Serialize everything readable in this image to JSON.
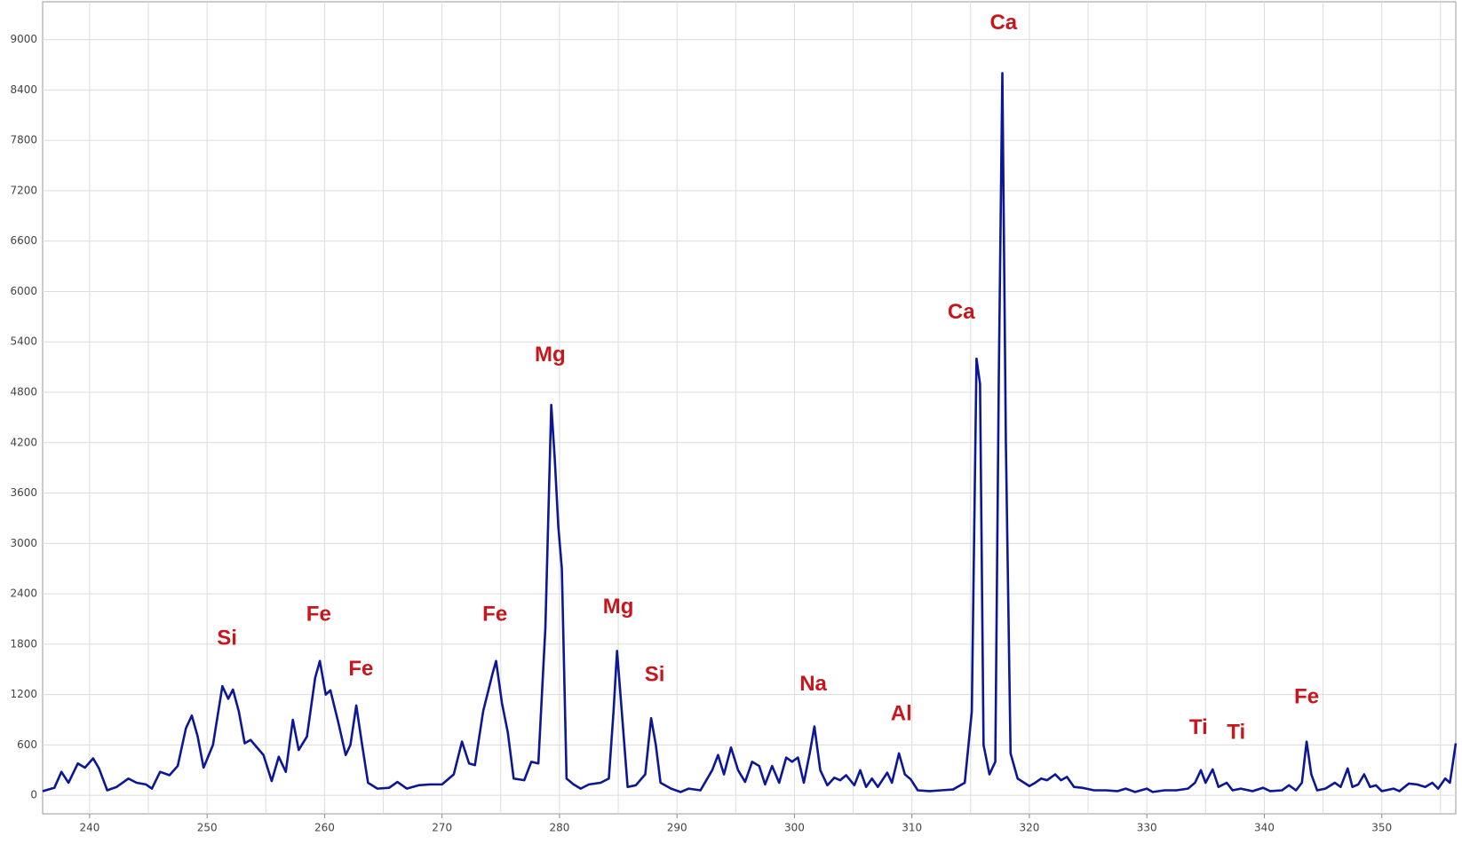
{
  "chart_data": {
    "type": "line",
    "x": [
      236.0,
      237,
      237.6,
      238.2,
      239,
      239.6,
      240.3,
      240.8,
      241.5,
      242.3,
      243.3,
      244,
      244.8,
      245.3,
      246,
      246.8,
      247.5,
      248.2,
      248.7,
      249.2,
      249.7,
      250.5,
      251.3,
      251.8,
      252.2,
      252.7,
      253.2,
      253.7,
      254.8,
      255.5,
      256.1,
      256.7,
      257.3,
      257.8,
      258.5,
      259.2,
      259.6,
      260.1,
      260.5,
      261.2,
      261.8,
      262.2,
      262.7,
      263.2,
      263.7,
      264.5,
      265.5,
      266.2,
      267,
      268,
      269,
      270,
      271,
      271.7,
      272.3,
      272.8,
      273.5,
      274.3,
      274.6,
      275.1,
      275.6,
      276.1,
      277,
      277.6,
      278.2,
      278.8,
      279.3,
      279.6,
      279.9,
      280.2,
      280.6,
      281.2,
      281.8,
      282.5,
      283.5,
      284.2,
      284.6,
      284.9,
      285.3,
      285.8,
      286.5,
      287.3,
      287.8,
      288.2,
      288.6,
      289.5,
      290.3,
      291,
      292,
      293,
      293.5,
      294,
      294.6,
      295.2,
      295.8,
      296.4,
      297,
      297.5,
      298.1,
      298.7,
      299.3,
      299.8,
      300.3,
      300.8,
      301.3,
      301.7,
      302.2,
      302.8,
      303.4,
      303.9,
      304.4,
      305.1,
      305.6,
      306.1,
      306.6,
      307.1,
      307.9,
      308.3,
      308.9,
      309.4,
      309.9,
      310.5,
      311.5,
      312.5,
      313.5,
      314.5,
      315.1,
      315.5,
      315.8,
      316.1,
      316.6,
      317.1,
      317.4,
      317.7,
      318,
      318.4,
      319,
      320,
      320.5,
      321,
      321.5,
      322.2,
      322.7,
      323.2,
      323.8,
      324.5,
      325.5,
      326.5,
      327.5,
      328.2,
      329,
      330,
      330.5,
      331.5,
      332.5,
      333.5,
      334.1,
      334.6,
      335,
      335.6,
      336.1,
      336.8,
      337.3,
      338,
      339,
      339.9,
      340.5,
      341.5,
      342.1,
      342.7,
      343.2,
      343.6,
      344,
      344.5,
      345.2,
      346,
      346.5,
      347.1,
      347.5,
      348,
      348.5,
      349,
      349.5,
      350,
      351,
      351.5,
      352.3,
      353,
      353.7,
      354.3,
      354.8,
      355.4,
      355.8,
      356.3
    ],
    "series": [
      {
        "color": "#0b1796",
        "values": [
          50,
          90,
          280,
          150,
          380,
          330,
          440,
          320,
          60,
          100,
          200,
          150,
          130,
          80,
          280,
          240,
          350,
          800,
          950,
          700,
          330,
          600,
          1300,
          1150,
          1260,
          1000,
          620,
          660,
          480,
          170,
          460,
          280,
          900,
          540,
          700,
          1400,
          1600,
          1200,
          1250,
          850,
          480,
          600,
          1070,
          600,
          150,
          80,
          90,
          160,
          80,
          120,
          130,
          130,
          250,
          640,
          380,
          360,
          1000,
          1450,
          1600,
          1100,
          750,
          200,
          180,
          400,
          380,
          2000,
          4650,
          4000,
          3200,
          2700,
          200,
          130,
          80,
          130,
          150,
          200,
          1000,
          1720,
          1000,
          100,
          120,
          250,
          920,
          600,
          150,
          80,
          40,
          80,
          60,
          300,
          480,
          250,
          570,
          300,
          160,
          400,
          350,
          130,
          350,
          150,
          450,
          400,
          450,
          150,
          500,
          820,
          300,
          120,
          210,
          180,
          240,
          120,
          300,
          100,
          200,
          100,
          270,
          150,
          500,
          250,
          190,
          60,
          50,
          60,
          70,
          150,
          1000,
          5200,
          4900,
          600,
          250,
          400,
          5000,
          8600,
          4200,
          500,
          200,
          110,
          150,
          200,
          180,
          250,
          180,
          220,
          100,
          90,
          60,
          60,
          50,
          80,
          40,
          80,
          40,
          60,
          60,
          80,
          150,
          300,
          150,
          310,
          100,
          150,
          60,
          80,
          50,
          90,
          50,
          60,
          120,
          60,
          150,
          640,
          250,
          60,
          80,
          150,
          100,
          320,
          100,
          130,
          250,
          100,
          120,
          50,
          80,
          50,
          140,
          130,
          100,
          150,
          80,
          200,
          150,
          620
        ]
      }
    ],
    "xlim": [
      236,
      356.3
    ],
    "ylim": [
      -220,
      9450
    ],
    "xticks": [
      240,
      250,
      260,
      270,
      280,
      290,
      300,
      310,
      320,
      330,
      340,
      350
    ],
    "xgrid_minor": [
      245,
      255,
      265,
      275,
      285,
      295,
      305,
      315,
      325,
      335,
      345,
      355
    ],
    "yticks": [
      0,
      600,
      1200,
      1800,
      2400,
      3000,
      3600,
      4200,
      4800,
      5400,
      6000,
      6600,
      7200,
      7800,
      8400,
      9000
    ],
    "grid": true,
    "annotation_color": "#c8161d",
    "annotations": [
      {
        "text": "Si",
        "x": 251.7,
        "y": 1860
      },
      {
        "text": "Fe",
        "x": 259.5,
        "y": 2148
      },
      {
        "text": "Fe",
        "x": 263.1,
        "y": 1494
      },
      {
        "text": "Fe",
        "x": 274.5,
        "y": 2148
      },
      {
        "text": "Mg",
        "x": 279.2,
        "y": 5236
      },
      {
        "text": "Mg",
        "x": 285.0,
        "y": 2236
      },
      {
        "text": "Si",
        "x": 288.1,
        "y": 1428
      },
      {
        "text": "Na",
        "x": 301.6,
        "y": 1317
      },
      {
        "text": "Al",
        "x": 309.1,
        "y": 963
      },
      {
        "text": "Ca",
        "x": 314.2,
        "y": 5746
      },
      {
        "text": "Ca",
        "x": 317.8,
        "y": 9189
      },
      {
        "text": "Ti",
        "x": 334.4,
        "y": 797
      },
      {
        "text": "Ti",
        "x": 337.6,
        "y": 742
      },
      {
        "text": "Fe",
        "x": 343.6,
        "y": 1162
      }
    ]
  }
}
